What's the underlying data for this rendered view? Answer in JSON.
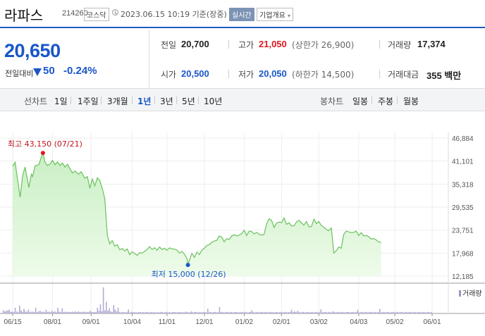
{
  "header": {
    "stock_name": "라파스",
    "stock_code": "214260",
    "market": "코스닥",
    "datetime": "2023.06.15 10:19 기준(장중)",
    "realtime_label": "실시간",
    "company_info_label": "기업개요",
    "company_info_caret": "▾"
  },
  "quote": {
    "price": "20,650",
    "change_label": "전일대비",
    "change": "50",
    "change_pct": "-0.24%",
    "direction": "down",
    "color_down": "#1a56c9",
    "color_up": "#e0191f",
    "stats": {
      "prev_close_label": "전일",
      "prev_close": "20,700",
      "high_label": "고가",
      "high": "21,050",
      "upper_limit": "(상한가 26,900)",
      "volume_label": "거래량",
      "volume": "17,374",
      "open_label": "시가",
      "open": "20,500",
      "low_label": "저가",
      "low": "20,050",
      "lower_limit": "(하한가 14,500)",
      "amount_label": "거래대금",
      "amount": "355 백만"
    }
  },
  "periods": {
    "line_label": "선차트",
    "line_items": [
      "1일",
      "1주일",
      "3개월",
      "1년",
      "3년",
      "5년",
      "10년"
    ],
    "active": "1년",
    "candle_label": "봉차트",
    "candle_items": [
      "일봉",
      "주봉",
      "월봉"
    ]
  },
  "chart_data": {
    "type": "area",
    "x_tick_labels": [
      "06/15",
      "08/01",
      "09/01",
      "10/04",
      "11/01",
      "12/01",
      "01/02",
      "02/01",
      "03/02",
      "04/03",
      "05/02",
      "06/01"
    ],
    "y_tick_labels": [
      "46,884",
      "41,101",
      "35,318",
      "29,535",
      "23,751",
      "17,968",
      "12,185"
    ],
    "ylim": [
      12185,
      46884
    ],
    "legend": "거래량",
    "annotations": {
      "max": {
        "label": "최고 43,150 (07/21)",
        "value": 43150,
        "x": 24.3
      },
      "min": {
        "label": "최저 15,000 (12/26)",
        "value": 15000,
        "x": 140.8
      }
    },
    "x_ticks": [
      0,
      32,
      63,
      96,
      124,
      154,
      186,
      216,
      246,
      278,
      307,
      337
    ],
    "price_series": [
      [
        0,
        39800
      ],
      [
        2,
        40800
      ],
      [
        3,
        38500
      ],
      [
        6,
        32000
      ],
      [
        8,
        37500
      ],
      [
        10,
        39600
      ],
      [
        11,
        37800
      ],
      [
        13,
        34500
      ],
      [
        15,
        37800
      ],
      [
        16,
        37200
      ],
      [
        18,
        39900
      ],
      [
        21,
        40200
      ],
      [
        23,
        42100
      ],
      [
        24.3,
        43150
      ],
      [
        26,
        40800
      ],
      [
        28,
        40000
      ],
      [
        30,
        40400
      ],
      [
        32,
        41300
      ],
      [
        34,
        40200
      ],
      [
        36,
        40900
      ],
      [
        38,
        40000
      ],
      [
        40,
        40600
      ],
      [
        42,
        39600
      ],
      [
        44,
        40300
      ],
      [
        46,
        39200
      ],
      [
        48,
        38100
      ],
      [
        50,
        38600
      ],
      [
        53,
        37800
      ],
      [
        55,
        38400
      ],
      [
        58,
        36800
      ],
      [
        60,
        37200
      ],
      [
        62,
        34300
      ],
      [
        64,
        36600
      ],
      [
        66,
        34900
      ],
      [
        68,
        36900
      ],
      [
        70,
        36200
      ],
      [
        72,
        34200
      ],
      [
        74,
        31600
      ],
      [
        75,
        27000
      ],
      [
        76,
        22500
      ],
      [
        78,
        20300
      ],
      [
        80,
        21100
      ],
      [
        82,
        19700
      ],
      [
        84,
        20100
      ],
      [
        86,
        18800
      ],
      [
        88,
        19100
      ],
      [
        90,
        18500
      ],
      [
        92,
        19000
      ],
      [
        94,
        17600
      ],
      [
        96,
        18300
      ],
      [
        98,
        17900
      ],
      [
        100,
        17400
      ],
      [
        102,
        18100
      ],
      [
        104,
        18000
      ],
      [
        106,
        18400
      ],
      [
        108,
        18900
      ],
      [
        110,
        19600
      ],
      [
        112,
        18900
      ],
      [
        114,
        19300
      ],
      [
        116,
        18700
      ],
      [
        118,
        19500
      ],
      [
        120,
        18900
      ],
      [
        122,
        19200
      ],
      [
        124,
        18700
      ],
      [
        126,
        19300
      ],
      [
        128,
        19000
      ],
      [
        130,
        19000
      ],
      [
        132,
        18700
      ],
      [
        134,
        18000
      ],
      [
        136,
        18400
      ],
      [
        138,
        17700
      ],
      [
        140,
        16600
      ],
      [
        140.8,
        15000
      ],
      [
        142,
        16200
      ],
      [
        144,
        17900
      ],
      [
        146,
        16900
      ],
      [
        148,
        18200
      ],
      [
        150,
        17600
      ],
      [
        152,
        18700
      ],
      [
        154,
        19200
      ],
      [
        156,
        19900
      ],
      [
        158,
        20100
      ],
      [
        160,
        20700
      ],
      [
        162,
        21000
      ],
      [
        164,
        21200
      ],
      [
        166,
        22300
      ],
      [
        168,
        22000
      ],
      [
        170,
        20800
      ],
      [
        172,
        21600
      ],
      [
        174,
        21400
      ],
      [
        176,
        22300
      ],
      [
        178,
        22600
      ],
      [
        180,
        22300
      ],
      [
        182,
        22500
      ],
      [
        184,
        22900
      ],
      [
        186,
        23700
      ],
      [
        188,
        22400
      ],
      [
        190,
        23500
      ],
      [
        192,
        23400
      ],
      [
        194,
        22800
      ],
      [
        196,
        23200
      ],
      [
        198,
        22700
      ],
      [
        200,
        22500
      ],
      [
        202,
        22700
      ],
      [
        204,
        25300
      ],
      [
        206,
        26600
      ],
      [
        208,
        26200
      ],
      [
        210,
        24400
      ],
      [
        212,
        25500
      ],
      [
        214,
        25800
      ],
      [
        216,
        25600
      ],
      [
        218,
        26800
      ],
      [
        220,
        25200
      ],
      [
        222,
        25600
      ],
      [
        224,
        24800
      ],
      [
        226,
        24800
      ],
      [
        228,
        25800
      ],
      [
        230,
        26200
      ],
      [
        232,
        25600
      ],
      [
        234,
        25000
      ],
      [
        236,
        25900
      ],
      [
        238,
        24600
      ],
      [
        240,
        24600
      ],
      [
        242,
        26500
      ],
      [
        244,
        25400
      ],
      [
        246,
        25900
      ],
      [
        248,
        24900
      ],
      [
        250,
        24500
      ],
      [
        252,
        23900
      ],
      [
        254,
        23600
      ],
      [
        256,
        24300
      ],
      [
        258,
        18000
      ],
      [
        260,
        18600
      ],
      [
        262,
        19500
      ],
      [
        264,
        19200
      ],
      [
        266,
        22700
      ],
      [
        268,
        23500
      ],
      [
        270,
        23300
      ],
      [
        272,
        23100
      ],
      [
        274,
        23200
      ],
      [
        276,
        23500
      ],
      [
        278,
        22400
      ],
      [
        280,
        23100
      ],
      [
        282,
        22300
      ],
      [
        284,
        22400
      ],
      [
        286,
        22100
      ],
      [
        288,
        21500
      ],
      [
        290,
        21600
      ],
      [
        292,
        21300
      ],
      [
        294,
        20800
      ],
      [
        296,
        20650
      ]
    ],
    "volume_series": [
      0.12,
      0.08,
      0.1,
      0.12,
      0.15,
      0.06,
      0.08,
      0.05,
      0.22,
      0.07,
      0.05,
      0.3,
      0.12,
      0.06,
      0.18,
      0.08,
      0.06,
      0.15,
      0.05,
      0.07,
      0.07,
      0.05,
      0.22,
      0.05,
      0.08,
      0.1,
      0.06,
      0.07,
      0.05,
      0.14,
      0.06,
      0.07,
      0.05,
      0.1,
      0.06,
      0.08,
      0.05,
      0.22,
      0.07,
      0.05,
      0.2,
      0.05,
      0.06,
      0.07,
      0.05,
      0.06,
      0.05,
      0.07,
      0.05,
      0.08,
      0.05,
      0.08,
      0.06,
      0.05,
      0.06,
      0.07,
      0.05,
      0.06,
      0.05,
      0.1,
      0.06,
      0.05,
      0.06,
      0.05,
      0.22,
      0.1,
      0.35,
      0.08,
      1.0,
      0.12,
      0.45,
      0.1,
      0.2,
      0.08,
      0.05,
      0.32,
      0.15,
      0.08,
      0.22,
      0.06,
      0.04,
      0.06,
      0.05,
      0.04,
      0.05,
      0.15,
      0.04,
      0.05,
      0.06,
      0.04,
      0.05,
      0.04,
      0.05,
      0.06,
      0.04,
      0.05,
      0.04,
      0.05,
      0.06,
      0.04,
      0.05,
      0.06,
      0.04,
      0.05,
      0.04,
      0.05,
      0.04,
      0.06,
      0.05,
      0.04,
      0.05,
      0.06,
      0.04,
      0.05,
      0.04,
      0.05,
      0.06,
      0.05,
      0.04,
      0.05,
      0.06,
      0.04,
      0.05,
      0.04,
      0.07,
      0.05,
      0.04,
      0.05,
      0.08,
      0.04,
      0.05,
      0.06,
      0.04,
      0.05,
      0.05,
      0.04,
      0.05,
      0.06,
      0.04,
      0.18,
      0.05,
      0.06,
      0.04,
      0.05,
      0.06,
      0.04,
      0.05,
      0.25,
      0.05,
      0.06,
      0.04,
      0.05,
      0.06,
      0.04,
      0.05,
      0.06,
      0.04,
      0.05,
      0.06,
      0.05,
      0.04,
      0.05,
      0.06,
      0.04,
      0.05,
      0.06,
      0.04,
      0.05,
      0.06,
      0.12,
      0.05,
      0.04,
      0.05,
      0.06,
      0.04,
      0.05,
      0.06,
      0.04,
      0.05,
      0.06,
      0.04,
      0.05,
      0.06,
      0.05,
      0.04,
      0.05,
      0.06,
      0.04,
      0.05,
      0.06,
      0.04,
      0.05,
      0.06,
      0.04,
      0.05,
      0.06,
      0.14,
      0.05,
      0.08,
      0.05,
      0.1,
      0.06,
      0.04,
      0.05,
      0.06,
      0.04,
      0.05,
      0.06,
      0.04,
      0.05,
      0.06,
      0.04,
      0.05,
      0.06,
      0.04,
      0.05,
      0.16,
      0.04,
      0.05,
      0.06,
      0.04,
      0.05,
      0.06,
      0.04,
      0.08,
      0.06,
      0.04,
      0.05,
      0.06,
      0.04,
      0.05,
      0.06,
      0.04,
      0.05,
      0.06,
      0.05,
      0.04,
      0.05,
      0.06,
      0.04,
      0.05,
      0.14,
      0.04,
      0.05,
      0.06,
      0.04,
      0.05,
      0.06,
      0.04,
      0.05,
      0.06,
      0.04,
      0.05,
      0.06,
      0.04,
      0.05,
      0.18,
      0.04,
      0.05,
      0.06,
      0.04,
      0.05,
      0.06,
      0.04,
      0.05,
      0.06,
      0.04,
      0.05,
      0.06,
      0.04,
      0.05,
      0.06,
      0.04,
      0.05,
      0.06,
      0.04,
      0.05,
      0.06,
      0.04,
      0.05,
      0.06,
      0.04,
      0.05,
      0.06,
      0.04,
      0.05,
      0.06,
      0.04,
      0.05,
      0.06,
      0.04,
      0.05
    ]
  }
}
